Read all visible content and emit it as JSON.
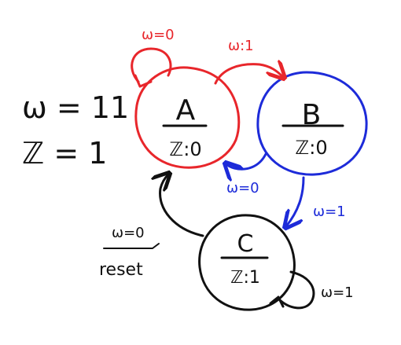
{
  "legend": {
    "w_line": "ω = 11",
    "z_line": "ℤ = 1",
    "reset_top": "ω=0",
    "reset_bottom": "reset"
  },
  "states": {
    "a": {
      "name": "A",
      "output": "ℤ:0",
      "color": "#e8262b"
    },
    "b": {
      "name": "B",
      "output": "ℤ:0",
      "color": "#1d2bd9"
    },
    "c": {
      "name": "C",
      "output": "ℤ:1",
      "color": "#111111"
    }
  },
  "transitions": {
    "a_self": "ω=0",
    "a_to_b": "ω:1",
    "b_to_a": "ω=0",
    "b_to_c": "ω=1",
    "c_self": "ω=1"
  },
  "colors": {
    "red": "#e8262b",
    "blue": "#1d2bd9",
    "black": "#111111"
  }
}
